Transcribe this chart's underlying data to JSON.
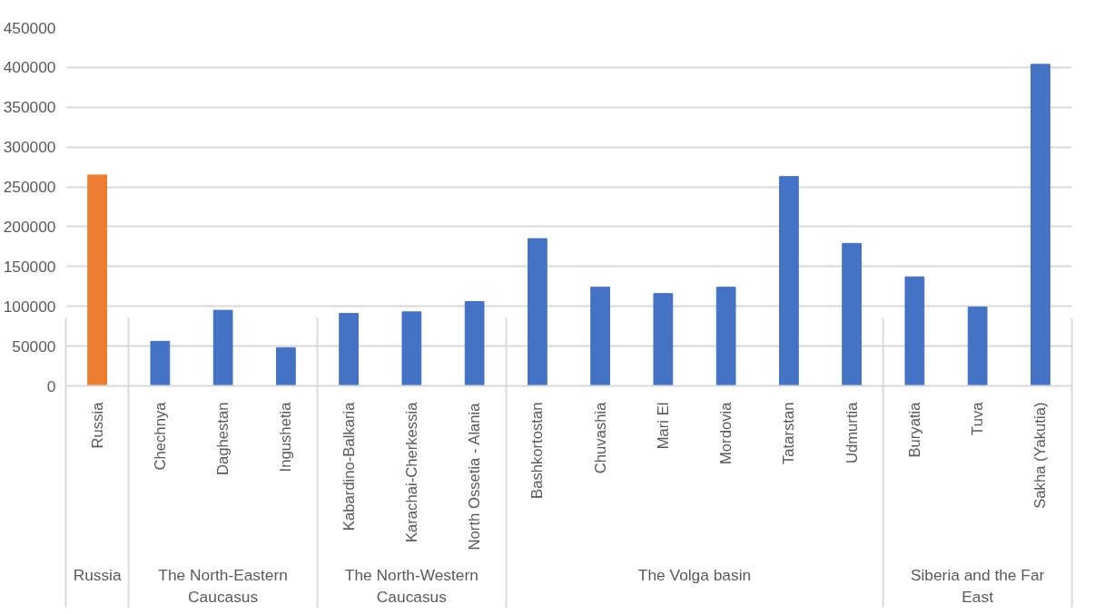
{
  "chart_data": {
    "type": "bar",
    "categories": [
      "Russia",
      "Chechnya",
      "Daghestan",
      "Ingushetia",
      "Kabardino-Balkaria",
      "Karachai-Cherkessia",
      "North Ossetia - Alania",
      "Bashkortostan",
      "Chuvashia",
      "Mari El",
      "Mordovia",
      "Tatarstan",
      "Udmurtia",
      "Buryatia",
      "Tuva",
      "Sakha (Yakutia)"
    ],
    "values": [
      265000,
      56000,
      95000,
      48000,
      91000,
      93000,
      106000,
      185000,
      124000,
      116000,
      124000,
      263000,
      179000,
      137000,
      99000,
      404000
    ],
    "colors": [
      "#ed7d31",
      "#4472c4",
      "#4472c4",
      "#4472c4",
      "#4472c4",
      "#4472c4",
      "#4472c4",
      "#4472c4",
      "#4472c4",
      "#4472c4",
      "#4472c4",
      "#4472c4",
      "#4472c4",
      "#4472c4",
      "#4472c4",
      "#4472c4"
    ],
    "annotations": [
      "Russia",
      "The North-Eastern Caucasus",
      "The North-Western Caucasus",
      "The Volga basin",
      "Siberia and the Far East"
    ],
    "ylim": [
      0,
      450000
    ],
    "yticks": [
      0,
      50000,
      100000,
      150000,
      200000,
      250000,
      300000,
      350000,
      400000,
      450000
    ],
    "grid": "y"
  }
}
